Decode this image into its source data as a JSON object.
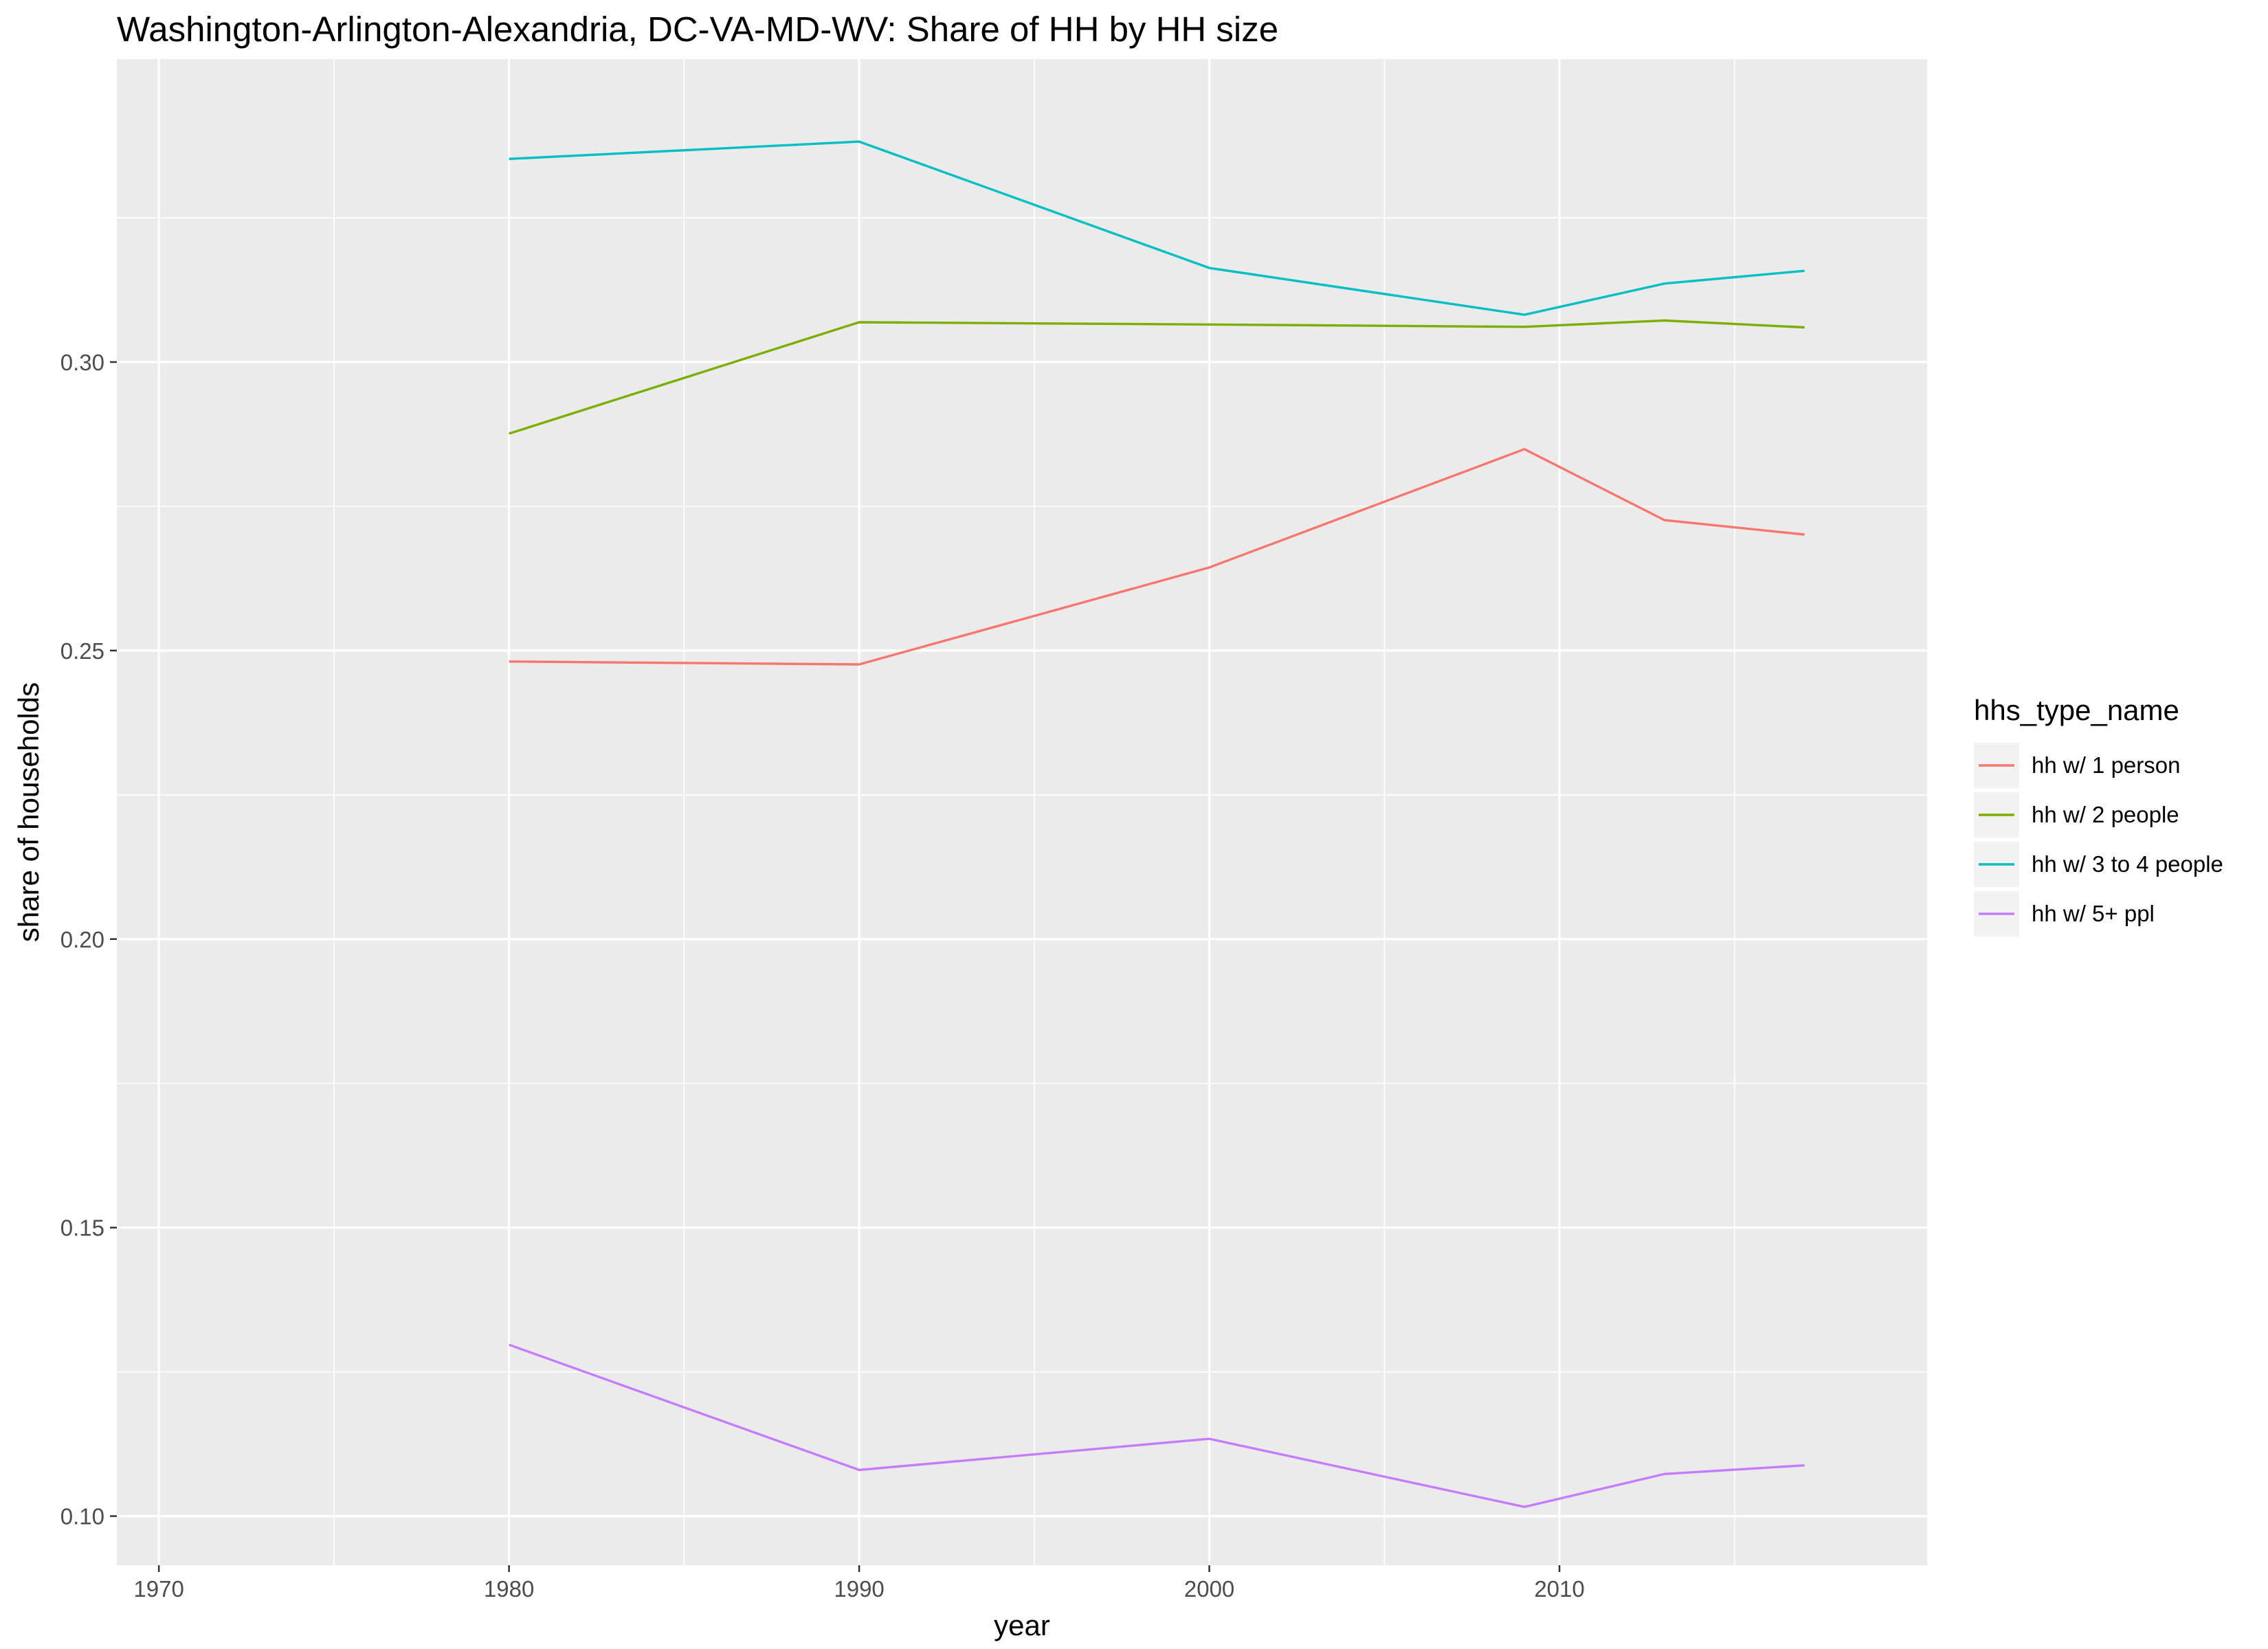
{
  "chart_data": {
    "type": "line",
    "title": "Washington-Arlington-Alexandria, DC-VA-MD-WV: Share of HH by HH size",
    "xlabel": "year",
    "ylabel": "share of households",
    "xlim": [
      1968.8,
      2020.5
    ],
    "ylim": [
      0.0915,
      0.3525
    ],
    "x_ticks": [
      1970,
      1980,
      1990,
      2000,
      2010
    ],
    "x_minor": [
      1975,
      1985,
      1995,
      2005,
      2015
    ],
    "y_ticks": [
      0.1,
      0.15,
      0.2,
      0.25,
      0.3
    ],
    "y_tick_labels": [
      "0.10",
      "0.15",
      "0.20",
      "0.25",
      "0.30"
    ],
    "y_minor": [
      0.125,
      0.175,
      0.225,
      0.275,
      0.325
    ],
    "grid": true,
    "legend_title": "hhs_type_name",
    "legend_position": "right",
    "x": [
      1980,
      1990,
      2000,
      2009,
      2013,
      2017
    ],
    "series": [
      {
        "name": "hh w/ 1 person",
        "color": "#F8766D",
        "values": [
          0.2481,
          0.2476,
          0.2644,
          0.2849,
          0.2726,
          0.2701
        ]
      },
      {
        "name": "hh w/ 2 people",
        "color": "#7CAE00",
        "values": [
          0.2876,
          0.3069,
          0.3065,
          0.3061,
          0.3072,
          0.306
        ]
      },
      {
        "name": "hh w/ 3 to 4 people",
        "color": "#00BFC4",
        "values": [
          0.3352,
          0.3382,
          0.3163,
          0.3082,
          0.3136,
          0.3158
        ]
      },
      {
        "name": "hh w/ 5+ ppl",
        "color": "#C77CFF",
        "values": [
          0.1297,
          0.108,
          0.1134,
          0.1016,
          0.1073,
          0.1088
        ]
      }
    ]
  }
}
